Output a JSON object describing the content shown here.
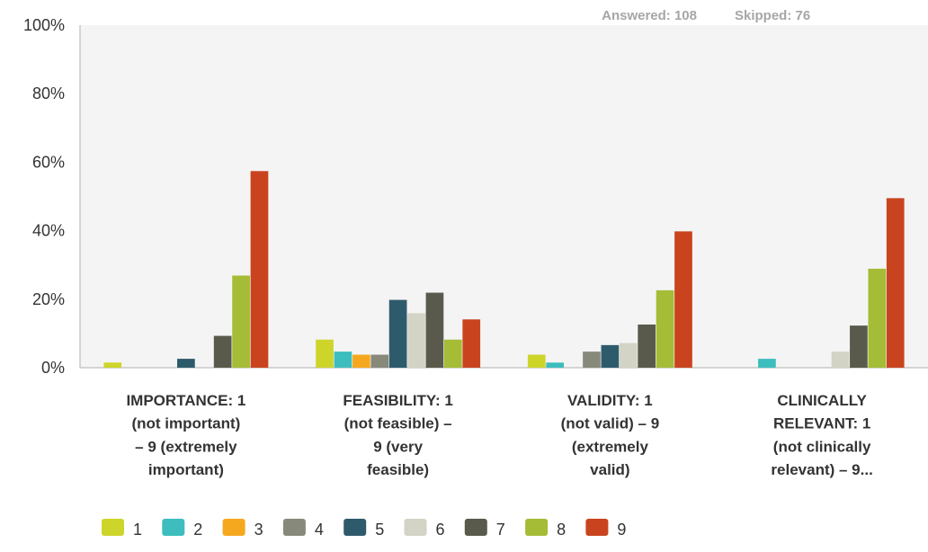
{
  "header": {
    "answered_label": "Answered: 108",
    "skipped_label": "Skipped: 76"
  },
  "chart_data": {
    "type": "bar",
    "title": "",
    "xlabel": "",
    "ylabel": "",
    "ylim": [
      0,
      100
    ],
    "y_ticks": [
      "0%",
      "20%",
      "40%",
      "60%",
      "80%",
      "100%"
    ],
    "y_tick_values": [
      0,
      20,
      40,
      60,
      80,
      100
    ],
    "grid": false,
    "legend_position": "bottom-left",
    "categories": [
      [
        "IMPORTANCE: 1",
        "(not important)",
        "– 9 (extremely",
        "important)"
      ],
      [
        "FEASIBILITY: 1",
        "(not feasible) –",
        "9 (very",
        "feasible)"
      ],
      [
        "VALIDITY: 1",
        "(not valid) – 9",
        "(extremely",
        "valid)"
      ],
      [
        "CLINICALLY",
        "RELEVANT: 1",
        "(not clinically",
        "relevant) – 9..."
      ]
    ],
    "series": [
      {
        "name": "1",
        "color": "#cdd52a",
        "values": [
          1.5,
          8.2,
          3.8,
          0
        ]
      },
      {
        "name": "2",
        "color": "#3dbdbd",
        "values": [
          0,
          4.7,
          1.5,
          2.6
        ]
      },
      {
        "name": "3",
        "color": "#f5a81e",
        "values": [
          0,
          3.8,
          0,
          0
        ]
      },
      {
        "name": "4",
        "color": "#878a7a",
        "values": [
          0,
          3.8,
          4.7,
          0
        ]
      },
      {
        "name": "5",
        "color": "#2e5b6b",
        "values": [
          2.6,
          19.8,
          6.6,
          0
        ]
      },
      {
        "name": "6",
        "color": "#d3d3c6",
        "values": [
          0,
          15.9,
          7.2,
          4.7
        ]
      },
      {
        "name": "7",
        "color": "#5a5a4c",
        "values": [
          9.3,
          21.9,
          12.6,
          12.3
        ]
      },
      {
        "name": "8",
        "color": "#a4bc36",
        "values": [
          26.9,
          8.2,
          22.6,
          28.9
        ]
      },
      {
        "name": "9",
        "color": "#c9441e",
        "values": [
          57.4,
          14.1,
          39.8,
          49.5
        ]
      }
    ]
  }
}
